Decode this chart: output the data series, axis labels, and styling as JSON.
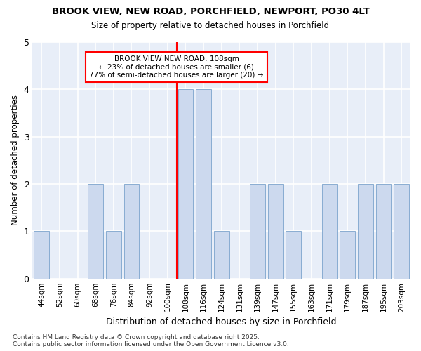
{
  "title": "BROOK VIEW, NEW ROAD, PORCHFIELD, NEWPORT, PO30 4LT",
  "subtitle": "Size of property relative to detached houses in Porchfield",
  "xlabel": "Distribution of detached houses by size in Porchfield",
  "ylabel": "Number of detached properties",
  "categories": [
    "44sqm",
    "52sqm",
    "60sqm",
    "68sqm",
    "76sqm",
    "84sqm",
    "92sqm",
    "100sqm",
    "108sqm",
    "116sqm",
    "124sqm",
    "131sqm",
    "139sqm",
    "147sqm",
    "155sqm",
    "163sqm",
    "171sqm",
    "179sqm",
    "187sqm",
    "195sqm",
    "203sqm"
  ],
  "values": [
    1,
    0,
    0,
    2,
    1,
    2,
    0,
    0,
    4,
    4,
    1,
    0,
    2,
    2,
    1,
    0,
    2,
    1,
    2,
    2,
    2
  ],
  "bar_color": "#ccd9ee",
  "bar_edge_color": "#7ba3cc",
  "highlight_index": 8,
  "annotation_title": "BROOK VIEW NEW ROAD: 108sqm",
  "annotation_line1": "← 23% of detached houses are smaller (6)",
  "annotation_line2": "77% of semi-detached houses are larger (20) →",
  "ylim": [
    0,
    5
  ],
  "yticks": [
    0,
    1,
    2,
    3,
    4,
    5
  ],
  "bg_color": "#ffffff",
  "plot_bg_color": "#e8eef8",
  "grid_color": "#ffffff",
  "footnote": "Contains HM Land Registry data © Crown copyright and database right 2025.\nContains public sector information licensed under the Open Government Licence v3.0."
}
